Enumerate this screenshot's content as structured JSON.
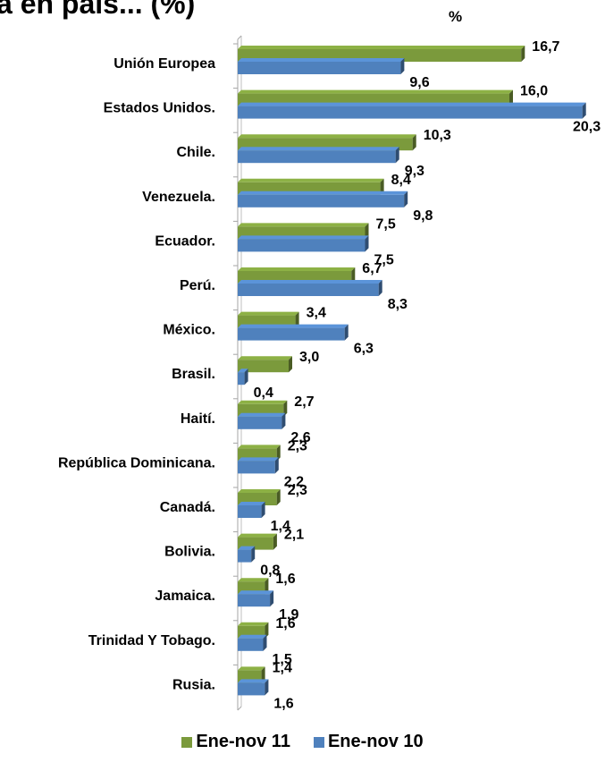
{
  "title": "a en país... (%)",
  "unit_label": "%",
  "colors": {
    "ene_nov_11": "#7B9A3C",
    "ene_nov_10": "#4F81BD"
  },
  "chart_data": {
    "type": "bar",
    "orientation": "horizontal",
    "style": "3d-clustered",
    "categories": [
      "Unión Europea",
      "Estados Unidos.",
      "Chile.",
      "Venezuela.",
      "Ecuador.",
      "Perú.",
      "México.",
      "Brasil.",
      "Haití.",
      "República Dominicana.",
      "Canadá.",
      "Bolivia.",
      "Jamaica.",
      "Trinidad Y Tobago.",
      "Rusia."
    ],
    "series": [
      {
        "name": "Ene-nov 11",
        "values": [
          16.7,
          16.0,
          10.3,
          8.4,
          7.5,
          6.7,
          3.4,
          3.0,
          2.7,
          2.3,
          2.3,
          2.1,
          1.6,
          1.6,
          1.4
        ],
        "labels": [
          "16,7",
          "16,0",
          "10,3",
          "8,4",
          "7,5",
          "6,7",
          "3,4",
          "3,0",
          "2,7",
          "2,3",
          "2,3",
          "2,1",
          "1,6",
          "1,6",
          "1,4"
        ]
      },
      {
        "name": "Ene-nov 10",
        "values": [
          9.6,
          20.3,
          9.3,
          9.8,
          7.5,
          8.3,
          6.3,
          0.4,
          2.6,
          2.2,
          1.4,
          0.8,
          1.9,
          1.5,
          1.6
        ],
        "labels": [
          "9,6",
          "20,3",
          "9,3",
          "9,8",
          "7,5",
          "8,3",
          "6,3",
          "0,4",
          "2,6",
          "2,2",
          "1,4",
          "0,8",
          "1,9",
          "1,5",
          "1,6"
        ]
      }
    ],
    "xlim": [
      0,
      20.3
    ],
    "legend_position": "bottom",
    "grid": false
  }
}
